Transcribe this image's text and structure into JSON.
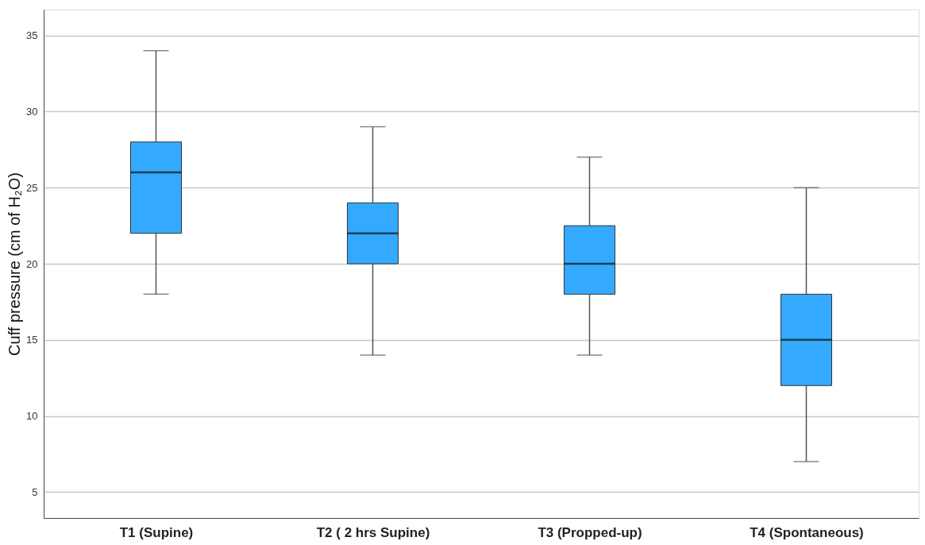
{
  "chart_data": {
    "type": "box",
    "ylabel": "Cuff pressure (cm of H₂O)",
    "categories": [
      "T1 (Supine)",
      "T2 ( 2 hrs Supine)",
      "T3 (Propped-up)",
      "T4 (Spontaneous)"
    ],
    "color": "#33aaff",
    "boxes": [
      {
        "low": 18,
        "q1": 22,
        "median": 26,
        "q3": 28,
        "high": 34
      },
      {
        "low": 14,
        "q1": 20,
        "median": 22,
        "q3": 24,
        "high": 29
      },
      {
        "low": 14,
        "q1": 18,
        "median": 20,
        "q3": 22.5,
        "high": 27
      },
      {
        "low": 7,
        "q1": 12,
        "median": 15,
        "q3": 18,
        "high": 25
      }
    ],
    "ylim": [
      3.3,
      36.7
    ],
    "yticks": [
      5,
      10,
      15,
      20,
      25,
      30,
      35
    ],
    "grid": "y"
  }
}
